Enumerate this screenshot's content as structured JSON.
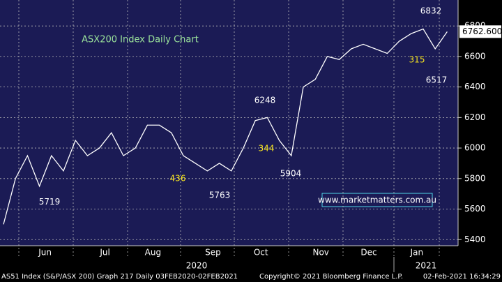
{
  "chart_data": {
    "type": "line",
    "title": "ASX200 Index Daily Chart",
    "categories": [
      null,
      null,
      null,
      "Jun",
      null,
      null,
      null,
      null,
      "Jul",
      null,
      null,
      null,
      "Aug",
      null,
      null,
      null,
      null,
      "Sep",
      null,
      null,
      null,
      "Oct",
      null,
      null,
      null,
      null,
      "Nov",
      null,
      null,
      null,
      "Dec",
      null,
      null,
      null,
      "Jan",
      null,
      null,
      null
    ],
    "series": [
      {
        "name": "AS51 Index",
        "color": "#ffffff",
        "values": [
          5500,
          5800,
          5950,
          5750,
          5950,
          5850,
          6050,
          5950,
          6000,
          6100,
          5950,
          6000,
          6150,
          6150,
          6100,
          5950,
          5900,
          5850,
          5900,
          5850,
          6000,
          6180,
          6200,
          6050,
          5950,
          6400,
          6450,
          6600,
          6580,
          6650,
          6680,
          6650,
          6620,
          6700,
          6750,
          6780,
          6650,
          6762.6
        ]
      }
    ],
    "ylim": [
      5360,
      6970
    ],
    "yticks": [
      5400,
      5600,
      5800,
      6000,
      6200,
      6400,
      6600,
      6800
    ],
    "grid": true,
    "last_value": {
      "value": 6762.6,
      "label": "6762.600"
    },
    "annotations": [
      6832,
      6248,
      5719,
      5763,
      5904,
      6517
    ],
    "swing_labels": [
      436,
      344,
      315
    ],
    "swing_color": "#f5e320",
    "year_labels": [
      "2020",
      "2021"
    ],
    "watermark": "www.marketmatters.com.au",
    "footer": {
      "left": "AS51 Index (S&P/ASX 200) Graph 217  Daily 03FEB2020-02FEB2021",
      "center": "Copyright© 2021 Bloomberg Finance L.P.",
      "right": "02-Feb-2021 16:34:29"
    }
  }
}
